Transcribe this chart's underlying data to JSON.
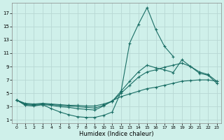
{
  "background_color": "#cff0ea",
  "grid_color": "#b8d8d4",
  "line_color": "#1a6e65",
  "xlabel": "Humidex (Indice chaleur)",
  "xlim": [
    -0.5,
    23.5
  ],
  "ylim": [
    0.5,
    18.5
  ],
  "xticks": [
    0,
    1,
    2,
    3,
    4,
    5,
    6,
    7,
    8,
    9,
    10,
    11,
    12,
    13,
    14,
    15,
    16,
    17,
    18,
    19,
    20,
    21,
    22,
    23
  ],
  "yticks": [
    1,
    3,
    5,
    7,
    9,
    11,
    13,
    15,
    17
  ],
  "curves": [
    {
      "x": [
        0,
        1,
        2,
        3,
        4,
        5,
        6,
        7,
        8,
        9,
        10,
        11,
        12,
        13,
        14,
        15,
        16,
        17,
        18
      ],
      "y": [
        4.0,
        3.2,
        3.1,
        3.3,
        2.7,
        2.2,
        1.8,
        1.5,
        1.4,
        1.4,
        1.7,
        2.2,
        5.2,
        12.5,
        15.3,
        17.8,
        14.5,
        12.0,
        10.5
      ]
    },
    {
      "x": [
        0,
        1,
        2,
        3,
        4,
        5,
        6,
        7,
        8,
        9,
        10,
        11,
        12,
        13,
        14,
        15,
        16,
        17,
        18,
        19,
        20,
        21,
        22,
        23
      ],
      "y": [
        4.0,
        3.5,
        3.4,
        3.5,
        3.4,
        3.3,
        3.2,
        3.2,
        3.1,
        3.1,
        3.4,
        3.8,
        5.0,
        6.2,
        7.4,
        8.2,
        8.5,
        8.9,
        9.2,
        9.5,
        9.0,
        8.0,
        7.7,
        6.5
      ]
    },
    {
      "x": [
        0,
        1,
        2,
        3,
        4,
        5,
        6,
        7,
        8,
        9,
        10,
        11,
        12,
        13,
        14,
        15,
        16,
        17,
        18,
        19,
        20,
        21,
        22,
        23
      ],
      "y": [
        4.0,
        3.4,
        3.3,
        3.4,
        3.3,
        3.2,
        3.1,
        3.0,
        2.9,
        2.8,
        3.2,
        3.8,
        5.3,
        6.8,
        8.2,
        9.2,
        8.8,
        8.5,
        8.1,
        10.0,
        9.0,
        8.2,
        7.8,
        6.8
      ]
    },
    {
      "x": [
        0,
        1,
        2,
        3,
        4,
        5,
        6,
        7,
        8,
        9,
        10,
        11,
        12,
        13,
        14,
        15,
        16,
        17,
        18,
        19,
        20,
        21,
        22,
        23
      ],
      "y": [
        4.0,
        3.3,
        3.2,
        3.3,
        3.2,
        3.0,
        2.9,
        2.7,
        2.6,
        2.5,
        3.1,
        3.9,
        4.5,
        4.9,
        5.3,
        5.7,
        5.9,
        6.2,
        6.5,
        6.8,
        6.9,
        7.0,
        7.0,
        6.8
      ]
    }
  ]
}
